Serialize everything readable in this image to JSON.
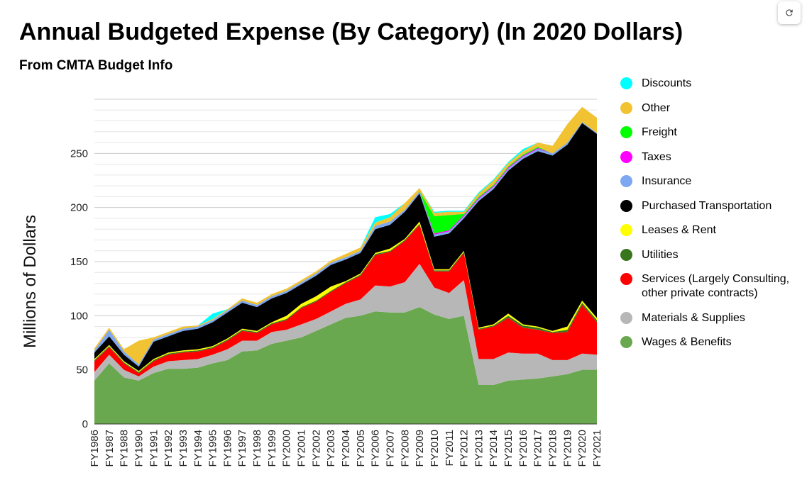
{
  "header": {
    "title": "Annual Budgeted Expense (By Category) (In 2020 Dollars)",
    "subtitle": "From CMTA Budget Info"
  },
  "toolbar": {
    "refresh_icon": "refresh-icon"
  },
  "chart_data": {
    "type": "area",
    "stacked": true,
    "ylabel": "Millions of Dollars",
    "ylim": [
      0,
      300
    ],
    "yticks": [
      0,
      50,
      100,
      150,
      200,
      250
    ],
    "grid": true,
    "legend_position": "right",
    "categories": [
      "FY1986",
      "FY1987",
      "FY1988",
      "FY1990",
      "FY1991",
      "FY1992",
      "FY1993",
      "FY1994",
      "FY1995",
      "FY1996",
      "FY1997",
      "FY1998",
      "FY1999",
      "FY2000",
      "FY2001",
      "FY2002",
      "FY2003",
      "FY2004",
      "FY2005",
      "FY2006",
      "FY2007",
      "FY2008",
      "FY2009",
      "FY2010",
      "FY2011",
      "FY2012",
      "FY2013",
      "FY2014",
      "FY2015",
      "FY2016",
      "FY2017",
      "FY2018",
      "FY2019",
      "FY2020",
      "FY2021"
    ],
    "series": [
      {
        "name": "Wages & Benefits",
        "color": "#6aa84f",
        "values": [
          40,
          56,
          43,
          40,
          47,
          51,
          51,
          52,
          56,
          59,
          67,
          68,
          74,
          77,
          80,
          86,
          92,
          98,
          100,
          104,
          103,
          103,
          108,
          101,
          97,
          100,
          36,
          36,
          40,
          41,
          42,
          44,
          46,
          50,
          50
        ]
      },
      {
        "name": "Materials & Supplies",
        "color": "#b7b7b7",
        "values": [
          8,
          8,
          7,
          4,
          6,
          7,
          8,
          8,
          8,
          10,
          10,
          9,
          11,
          10,
          12,
          11,
          12,
          13,
          15,
          24,
          24,
          28,
          40,
          25,
          24,
          33,
          24,
          24,
          26,
          24,
          23,
          15,
          13,
          15,
          14
        ]
      },
      {
        "name": "Services (Largely Consulting, other private contracts)",
        "color": "#ff0000",
        "values": [
          10,
          7,
          6,
          3,
          5,
          6,
          7,
          7,
          6,
          8,
          9,
          7,
          7,
          9,
          15,
          16,
          18,
          19,
          22,
          28,
          32,
          38,
          36,
          15,
          20,
          25,
          27,
          30,
          32,
          24,
          22,
          25,
          26,
          45,
          30
        ]
      },
      {
        "name": "Utilities",
        "color": "#38761d",
        "values": [
          1,
          1,
          1,
          1,
          1,
          1,
          1,
          1,
          1,
          1,
          1,
          1,
          1,
          1,
          1,
          1,
          1,
          1,
          1,
          1,
          1,
          1,
          1,
          1,
          1,
          1,
          1,
          1,
          2,
          2,
          2,
          1,
          2,
          2,
          2
        ]
      },
      {
        "name": "Leases & Rent",
        "color": "#ffff00",
        "values": [
          1,
          1,
          1,
          1,
          1,
          1,
          1,
          1,
          1,
          1,
          1,
          1,
          1,
          3,
          3,
          4,
          4,
          1,
          1,
          1,
          2,
          1,
          2,
          1,
          1,
          1,
          1,
          1,
          2,
          1,
          1,
          1,
          3,
          2,
          2
        ]
      },
      {
        "name": "Purchased Transportation",
        "color": "#000000",
        "values": [
          6,
          8,
          6,
          4,
          16,
          15,
          18,
          19,
          22,
          24,
          24,
          22,
          22,
          21,
          18,
          19,
          20,
          20,
          19,
          22,
          22,
          25,
          26,
          30,
          33,
          30,
          117,
          125,
          132,
          153,
          162,
          162,
          168,
          164,
          170
        ]
      },
      {
        "name": "Insurance",
        "color": "#7da7f0",
        "values": [
          2,
          6,
          3,
          2,
          2,
          2,
          2,
          2,
          2,
          2,
          2,
          2,
          2,
          2,
          2,
          2,
          2,
          2,
          2,
          3,
          3,
          2,
          2,
          2,
          2,
          2,
          2,
          2,
          2,
          2,
          2,
          2,
          2,
          1,
          1
        ]
      },
      {
        "name": "Taxes",
        "color": "#ff00ff",
        "values": [
          0,
          0,
          0,
          0,
          0,
          0,
          0,
          0,
          0,
          0,
          0,
          0,
          0,
          0,
          0,
          0,
          0,
          0,
          0,
          0,
          0,
          0,
          0,
          1,
          1,
          1,
          1,
          1,
          1,
          1,
          1,
          0,
          0,
          0,
          0
        ]
      },
      {
        "name": "Freight",
        "color": "#00ff00",
        "values": [
          0,
          0,
          0,
          0,
          0,
          0,
          0,
          0,
          0,
          0,
          0,
          0,
          0,
          0,
          0,
          0,
          0,
          0,
          0,
          0,
          0,
          0,
          0,
          16,
          14,
          1,
          1,
          1,
          1,
          1,
          1,
          0,
          0,
          0,
          0
        ]
      },
      {
        "name": "Other",
        "color": "#f1c232",
        "values": [
          2,
          2,
          2,
          22,
          2,
          2,
          2,
          1,
          1,
          1,
          2,
          2,
          2,
          2,
          2,
          2,
          2,
          3,
          3,
          3,
          4,
          6,
          3,
          3,
          3,
          2,
          3,
          4,
          3,
          3,
          4,
          7,
          17,
          14,
          14
        ]
      },
      {
        "name": "Discounts",
        "color": "#00ffff",
        "values": [
          0,
          0,
          0,
          0,
          0,
          0,
          0,
          0,
          5,
          0,
          0,
          0,
          0,
          0,
          0,
          0,
          0,
          0,
          0,
          5,
          3,
          0,
          0,
          1,
          1,
          1,
          1,
          1,
          1,
          2,
          0,
          0,
          0,
          0,
          0
        ]
      }
    ]
  }
}
